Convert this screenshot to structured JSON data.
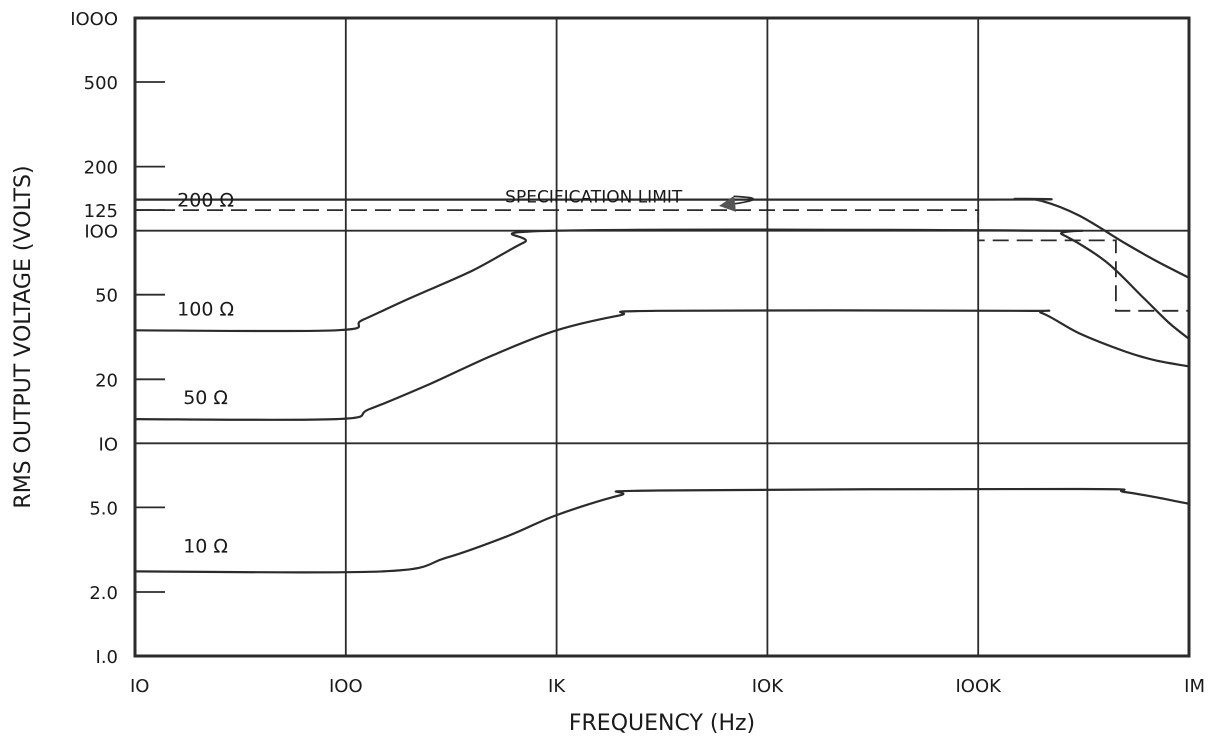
{
  "chart_data": {
    "type": "line",
    "xlabel": "FREQUENCY (Hz)",
    "ylabel": "RMS  OUTPUT  VOLTAGE (VOLTS)",
    "x_scale": "log",
    "y_scale": "log",
    "xlim": [
      10,
      1000000
    ],
    "ylim": [
      1,
      1000
    ],
    "grid": true,
    "x_ticks": [
      {
        "value": 10,
        "label": "IO"
      },
      {
        "value": 100,
        "label": "IOO"
      },
      {
        "value": 1000,
        "label": "IK"
      },
      {
        "value": 10000,
        "label": "IOK"
      },
      {
        "value": 100000,
        "label": "IOOK"
      },
      {
        "value": 1000000,
        "label": "IM"
      }
    ],
    "y_ticks": [
      {
        "value": 1000,
        "label": "IOOO",
        "grid": false
      },
      {
        "value": 500,
        "label": "500",
        "grid": false
      },
      {
        "value": 200,
        "label": "200",
        "grid": false
      },
      {
        "value": 125,
        "label": "125",
        "grid": false
      },
      {
        "value": 100,
        "label": "IOO",
        "grid": true
      },
      {
        "value": 50,
        "label": "50",
        "grid": false
      },
      {
        "value": 20,
        "label": "20",
        "grid": false
      },
      {
        "value": 10,
        "label": "IO",
        "grid": true
      },
      {
        "value": 5,
        "label": "5.0",
        "grid": false
      },
      {
        "value": 2,
        "label": "2.0",
        "grid": false
      },
      {
        "value": 1,
        "label": "I.0",
        "grid": false
      }
    ],
    "series": [
      {
        "name": "200 Ω",
        "label_at": [
          30,
          140
        ],
        "points": [
          [
            10,
            140
          ],
          [
            100000,
            140
          ],
          [
            150000,
            141
          ],
          [
            200000,
            138
          ],
          [
            300000,
            118
          ],
          [
            500000,
            87
          ],
          [
            700000,
            72
          ],
          [
            1000000,
            60
          ]
        ]
      },
      {
        "name": "100 Ω",
        "label_at": [
          30,
          43
        ],
        "points": [
          [
            10,
            34
          ],
          [
            90,
            34
          ],
          [
            120,
            38
          ],
          [
            200,
            48
          ],
          [
            400,
            65
          ],
          [
            700,
            88
          ],
          [
            1000,
            100
          ],
          [
            200000,
            100
          ],
          [
            250000,
            96
          ],
          [
            400000,
            72
          ],
          [
            600000,
            49
          ],
          [
            800000,
            37
          ],
          [
            1000000,
            31
          ]
        ]
      },
      {
        "name": "50 Ω",
        "label_at": [
          30,
          16.5
        ],
        "points": [
          [
            10,
            13
          ],
          [
            90,
            13
          ],
          [
            130,
            14.5
          ],
          [
            250,
            19
          ],
          [
            500,
            26
          ],
          [
            1000,
            34
          ],
          [
            2000,
            40
          ],
          [
            3000,
            42
          ],
          [
            150000,
            42
          ],
          [
            200000,
            41
          ],
          [
            300000,
            33
          ],
          [
            500000,
            27
          ],
          [
            700000,
            24.5
          ],
          [
            1000000,
            23
          ]
        ]
      },
      {
        "name": "10 Ω",
        "label_at": [
          30,
          3.3
        ],
        "points": [
          [
            10,
            2.5
          ],
          [
            150,
            2.5
          ],
          [
            300,
            2.9
          ],
          [
            600,
            3.7
          ],
          [
            1000,
            4.6
          ],
          [
            2000,
            5.7
          ],
          [
            3000,
            6
          ],
          [
            300000,
            6.1
          ],
          [
            500000,
            5.9
          ],
          [
            1000000,
            5.2
          ]
        ]
      }
    ],
    "specification_limit": {
      "label": "SPECIFICATION  LIMIT",
      "label_at": [
        1500,
        145
      ],
      "arrow_to": [
        6000,
        131
      ],
      "points": [
        [
          10,
          125
        ],
        [
          100000,
          125
        ],
        [
          100000,
          90
        ],
        [
          450000,
          90
        ],
        [
          450000,
          42
        ],
        [
          1000000,
          42
        ]
      ]
    }
  }
}
